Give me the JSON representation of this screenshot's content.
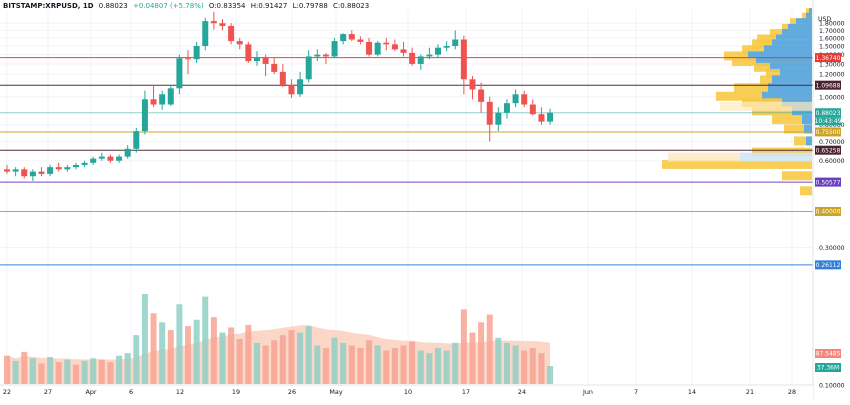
{
  "header": {
    "symbol": "BITSTAMP:XRPUSD, 1D",
    "last": "0.88023",
    "change": "+0.04807 (+5.78%)",
    "open": "O:0.83354",
    "high": "H:0.91427",
    "low": "L:0.79788",
    "close": "C:0.88023"
  },
  "colors": {
    "up": "#26a69a",
    "down": "#ef5350",
    "vol_up": "#8fcfc6",
    "vol_down": "#f7a392",
    "vol_ma": "#f9c9b6",
    "vp_blue": "#5aa9e6",
    "vp_yellow": "#f7c945"
  },
  "chart_data": {
    "type": "candlestick",
    "timeframe": "1D",
    "y_scale": "log",
    "y_unit": "USD",
    "ylim": [
      0.1,
      2.0
    ],
    "y_ticks": [
      "1.80000",
      "1.70000",
      "1.60000",
      "1.50000",
      "1.40000",
      "1.30000",
      "1.20000",
      "1.00000",
      "0.80000",
      "0.70000",
      "0.60000",
      "0.30000",
      "0.10000"
    ],
    "y_unit_label": "USD",
    "x_ticks": [
      "22",
      "27",
      "Apr",
      "6",
      "12",
      "19",
      "26",
      "May",
      "10",
      "17",
      "24",
      "Jun",
      "7",
      "14",
      "21",
      "28"
    ],
    "candles": [
      [
        0.56,
        0.58,
        0.54,
        0.55
      ],
      [
        0.55,
        0.57,
        0.53,
        0.56
      ],
      [
        0.56,
        0.57,
        0.52,
        0.53
      ],
      [
        0.53,
        0.56,
        0.51,
        0.55
      ],
      [
        0.55,
        0.57,
        0.53,
        0.54
      ],
      [
        0.54,
        0.58,
        0.53,
        0.57
      ],
      [
        0.57,
        0.59,
        0.55,
        0.56
      ],
      [
        0.56,
        0.58,
        0.55,
        0.57
      ],
      [
        0.57,
        0.59,
        0.56,
        0.58
      ],
      [
        0.58,
        0.6,
        0.57,
        0.59
      ],
      [
        0.59,
        0.62,
        0.58,
        0.61
      ],
      [
        0.61,
        0.64,
        0.6,
        0.62
      ],
      [
        0.62,
        0.63,
        0.59,
        0.6
      ],
      [
        0.6,
        0.63,
        0.59,
        0.62
      ],
      [
        0.62,
        0.68,
        0.61,
        0.66
      ],
      [
        0.66,
        0.78,
        0.64,
        0.76
      ],
      [
        0.76,
        1.05,
        0.74,
        0.98
      ],
      [
        0.98,
        1.1,
        0.92,
        0.94
      ],
      [
        0.94,
        1.05,
        0.9,
        1.02
      ],
      [
        0.94,
        1.1,
        0.93,
        1.07
      ],
      [
        1.07,
        1.4,
        1.02,
        1.36
      ],
      [
        1.36,
        1.45,
        1.2,
        1.35
      ],
      [
        1.35,
        1.55,
        1.31,
        1.5
      ],
      [
        1.5,
        1.88,
        1.45,
        1.83
      ],
      [
        1.83,
        1.97,
        1.71,
        1.8
      ],
      [
        1.8,
        1.86,
        1.7,
        1.76
      ],
      [
        1.76,
        1.8,
        1.52,
        1.56
      ],
      [
        1.56,
        1.6,
        1.46,
        1.52
      ],
      [
        1.52,
        1.55,
        1.31,
        1.33
      ],
      [
        1.33,
        1.44,
        1.28,
        1.37
      ],
      [
        1.37,
        1.4,
        1.18,
        1.3
      ],
      [
        1.3,
        1.37,
        1.2,
        1.22
      ],
      [
        1.22,
        1.3,
        1.08,
        1.1
      ],
      [
        1.1,
        1.15,
        0.99,
        1.02
      ],
      [
        1.02,
        1.22,
        1.0,
        1.15
      ],
      [
        1.15,
        1.45,
        1.12,
        1.38
      ],
      [
        1.38,
        1.46,
        1.33,
        1.4
      ],
      [
        1.4,
        1.42,
        1.3,
        1.38
      ],
      [
        1.38,
        1.6,
        1.36,
        1.56
      ],
      [
        1.56,
        1.66,
        1.52,
        1.65
      ],
      [
        1.65,
        1.7,
        1.56,
        1.58
      ],
      [
        1.58,
        1.62,
        1.52,
        1.55
      ],
      [
        1.55,
        1.6,
        1.38,
        1.4
      ],
      [
        1.4,
        1.56,
        1.38,
        1.54
      ],
      [
        1.54,
        1.6,
        1.45,
        1.52
      ],
      [
        1.52,
        1.58,
        1.44,
        1.46
      ],
      [
        1.46,
        1.55,
        1.38,
        1.42
      ],
      [
        1.42,
        1.48,
        1.28,
        1.3
      ],
      [
        1.3,
        1.4,
        1.24,
        1.38
      ],
      [
        1.38,
        1.48,
        1.35,
        1.4
      ],
      [
        1.4,
        1.52,
        1.36,
        1.48
      ],
      [
        1.48,
        1.56,
        1.44,
        1.5
      ],
      [
        1.5,
        1.7,
        1.46,
        1.58
      ],
      [
        1.58,
        1.63,
        1.02,
        1.15
      ],
      [
        1.15,
        1.18,
        0.98,
        1.06
      ],
      [
        1.06,
        1.12,
        0.88,
        0.96
      ],
      [
        0.96,
        1.0,
        0.7,
        0.8
      ],
      [
        0.8,
        0.92,
        0.76,
        0.88
      ],
      [
        0.88,
        0.98,
        0.84,
        0.95
      ],
      [
        0.95,
        1.06,
        0.92,
        1.02
      ],
      [
        1.02,
        1.05,
        0.92,
        0.94
      ],
      [
        0.94,
        0.98,
        0.86,
        0.87
      ],
      [
        0.87,
        0.92,
        0.8,
        0.82
      ],
      [
        0.82,
        0.91,
        0.8,
        0.88
      ]
    ],
    "volume": [
      [
        22,
        0
      ],
      [
        18,
        1
      ],
      [
        25,
        0
      ],
      [
        20,
        1
      ],
      [
        16,
        0
      ],
      [
        21,
        1
      ],
      [
        17,
        0
      ],
      [
        19,
        1
      ],
      [
        15,
        0
      ],
      [
        18,
        1
      ],
      [
        20,
        1
      ],
      [
        19,
        0
      ],
      [
        17,
        0
      ],
      [
        22,
        1
      ],
      [
        24,
        1
      ],
      [
        38,
        1
      ],
      [
        70,
        1
      ],
      [
        55,
        0
      ],
      [
        48,
        1
      ],
      [
        42,
        0
      ],
      [
        62,
        1
      ],
      [
        45,
        0
      ],
      [
        50,
        1
      ],
      [
        68,
        1
      ],
      [
        52,
        0
      ],
      [
        40,
        1
      ],
      [
        44,
        0
      ],
      [
        35,
        0
      ],
      [
        46,
        0
      ],
      [
        32,
        1
      ],
      [
        30,
        0
      ],
      [
        34,
        0
      ],
      [
        38,
        0
      ],
      [
        42,
        0
      ],
      [
        40,
        1
      ],
      [
        45,
        1
      ],
      [
        30,
        1
      ],
      [
        28,
        0
      ],
      [
        36,
        1
      ],
      [
        32,
        1
      ],
      [
        30,
        0
      ],
      [
        28,
        0
      ],
      [
        34,
        0
      ],
      [
        30,
        1
      ],
      [
        26,
        0
      ],
      [
        28,
        0
      ],
      [
        30,
        0
      ],
      [
        33,
        0
      ],
      [
        26,
        1
      ],
      [
        24,
        1
      ],
      [
        28,
        1
      ],
      [
        26,
        1
      ],
      [
        32,
        1
      ],
      [
        58,
        0
      ],
      [
        40,
        0
      ],
      [
        48,
        0
      ],
      [
        54,
        0
      ],
      [
        36,
        1
      ],
      [
        32,
        1
      ],
      [
        30,
        1
      ],
      [
        26,
        0
      ],
      [
        28,
        0
      ],
      [
        24,
        0
      ],
      [
        14,
        1
      ]
    ],
    "levels": [
      {
        "value": "1.36740",
        "price": 1.3674,
        "color": "#e53935"
      },
      {
        "value": "1.09688",
        "price": 1.09688,
        "color": "#4a2330"
      },
      {
        "value": "0.88023",
        "price": 0.88023,
        "color": "#26a69a"
      },
      {
        "value": "0.75500",
        "price": 0.755,
        "color": "#c9a227"
      },
      {
        "value": "0.65258",
        "price": 0.65258,
        "color": "#4a2330"
      },
      {
        "value": "0.50577",
        "price": 0.50577,
        "color": "#6a3fbf"
      },
      {
        "value": "0.40000",
        "price": 0.4,
        "color": "#c9a227"
      },
      {
        "value": "0.26112",
        "price": 0.26112,
        "color": "#2f7fd6"
      }
    ],
    "countdown": "10:43:49",
    "volume_labels": {
      "ma": "87.5485",
      "vol": "37.36M"
    },
    "volume_profile": [
      [
        1.95,
        6,
        3
      ],
      [
        1.88,
        10,
        6
      ],
      [
        1.8,
        22,
        16
      ],
      [
        1.72,
        30,
        24
      ],
      [
        1.65,
        42,
        30
      ],
      [
        1.58,
        55,
        36
      ],
      [
        1.52,
        60,
        40
      ],
      [
        1.45,
        70,
        48
      ],
      [
        1.38,
        88,
        64
      ],
      [
        1.32,
        80,
        56
      ],
      [
        1.26,
        58,
        42
      ],
      [
        1.2,
        46,
        32
      ],
      [
        1.14,
        52,
        40
      ],
      [
        1.07,
        78,
        44
      ],
      [
        1.0,
        96,
        50
      ],
      [
        0.95,
        70,
        30
      ],
      [
        0.89,
        60,
        20
      ],
      [
        0.83,
        40,
        10
      ],
      [
        0.77,
        28,
        8
      ],
      [
        0.7,
        18,
        6
      ],
      [
        0.64,
        60,
        0
      ],
      [
        0.58,
        150,
        0
      ],
      [
        0.53,
        30,
        0
      ],
      [
        0.47,
        12,
        0
      ]
    ]
  }
}
